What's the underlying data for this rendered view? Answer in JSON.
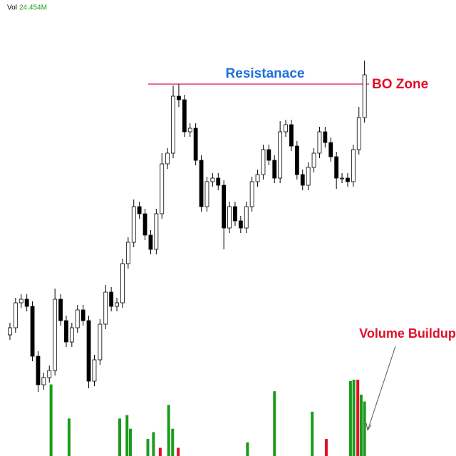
{
  "header": {
    "volume_label": "Vol",
    "volume_value": "24.454M"
  },
  "chart_data": {
    "type": "candlestick",
    "open": [
      170,
      180,
      215,
      220,
      210,
      140,
      100,
      110,
      120,
      220,
      190,
      160,
      180,
      205,
      190,
      105,
      135,
      185,
      230,
      210,
      215,
      270,
      300,
      350,
      340,
      310,
      290,
      340,
      410,
      425,
      505,
      500,
      455,
      460,
      415,
      350,
      385,
      390,
      380,
      320,
      350,
      330,
      320,
      350,
      385,
      395,
      430,
      415,
      390,
      455,
      465,
      435,
      395,
      380,
      405,
      425,
      455,
      440,
      420,
      390,
      390,
      385,
      430,
      475
    ],
    "high": [
      187,
      222,
      227,
      227,
      217,
      147,
      117,
      127,
      235,
      227,
      197,
      187,
      212,
      212,
      197,
      142,
      192,
      240,
      237,
      222,
      277,
      307,
      360,
      357,
      347,
      317,
      347,
      425,
      432,
      520,
      522,
      507,
      467,
      467,
      422,
      392,
      397,
      397,
      387,
      357,
      357,
      337,
      357,
      392,
      402,
      437,
      437,
      422,
      470,
      472,
      472,
      442,
      402,
      412,
      432,
      462,
      462,
      447,
      427,
      397,
      397,
      437,
      490,
      555
    ],
    "low": [
      163,
      173,
      208,
      203,
      133,
      90,
      93,
      103,
      113,
      183,
      153,
      153,
      173,
      183,
      95,
      98,
      128,
      178,
      203,
      203,
      208,
      263,
      293,
      333,
      303,
      283,
      283,
      333,
      403,
      418,
      490,
      448,
      448,
      408,
      343,
      343,
      378,
      373,
      290,
      313,
      323,
      313,
      313,
      343,
      378,
      388,
      408,
      383,
      383,
      448,
      428,
      388,
      373,
      373,
      398,
      418,
      433,
      413,
      375,
      383,
      378,
      378,
      423,
      468
    ],
    "close": [
      180,
      215,
      220,
      210,
      140,
      100,
      110,
      120,
      220,
      190,
      160,
      180,
      205,
      190,
      105,
      135,
      185,
      230,
      210,
      215,
      270,
      300,
      350,
      340,
      310,
      290,
      340,
      410,
      425,
      505,
      500,
      455,
      460,
      415,
      350,
      385,
      390,
      380,
      320,
      350,
      330,
      320,
      350,
      385,
      395,
      430,
      415,
      390,
      455,
      465,
      435,
      395,
      380,
      405,
      425,
      455,
      440,
      420,
      390,
      390,
      385,
      430,
      475,
      535
    ],
    "up_color": "#ffffff",
    "down_color": "#000000",
    "xlim": [
      0,
      64
    ],
    "ylim": [
      0,
      640
    ],
    "resistance": {
      "label": "Resistanace",
      "value": 522,
      "color": "#d81b4a"
    },
    "breakout_label": "BO Zone",
    "volume_annotation": "Volume Buildup",
    "volume": {
      "x": [
        7.8,
        11,
        20,
        21.3,
        21.9,
        25,
        26,
        27.2,
        28.7,
        29.4,
        30.4,
        42.7,
        47.5,
        54.2,
        56.7,
        61,
        61.6,
        62.3,
        62.9,
        63.5
      ],
      "values": [
        105,
        55,
        55,
        60,
        40,
        25,
        35,
        12,
        75,
        40,
        12,
        20,
        95,
        65,
        25,
        110,
        112,
        112,
        90,
        80
      ],
      "colors": [
        "#1a9c1a",
        "#1a9c1a",
        "#1a9c1a",
        "#1a9c1a",
        "#1a9c1a",
        "#1a9c1a",
        "#1a9c1a",
        "#e0102a",
        "#1a9c1a",
        "#1a9c1a",
        "#e0102a",
        "#1a9c1a",
        "#1a9c1a",
        "#1a9c1a",
        "#e0102a",
        "#1a9c1a",
        "#1a9c1a",
        "#e0102a",
        "#1a9c1a",
        "#1a9c1a"
      ],
      "y2lim": [
        0,
        115
      ]
    }
  }
}
